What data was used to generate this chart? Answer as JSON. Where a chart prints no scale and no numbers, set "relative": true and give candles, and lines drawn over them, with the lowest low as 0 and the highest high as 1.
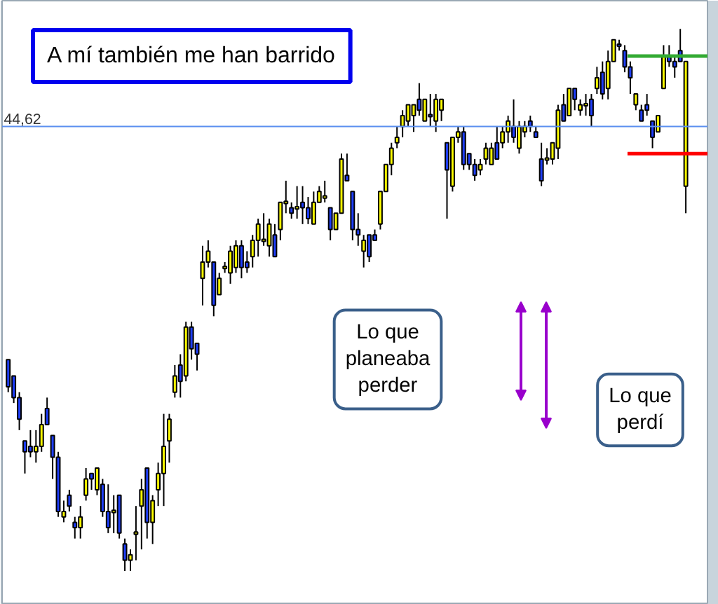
{
  "chart_data": {
    "type": "candlestick",
    "relative": true,
    "title": "A mí también me han barrido",
    "annotations": [
      "44,62",
      "Lo que planeaba perder",
      "Lo que perdí"
    ],
    "categories": [
      null,
      null,
      null,
      null,
      null,
      null,
      null,
      null,
      null,
      null,
      null,
      null,
      null,
      null,
      null,
      null,
      null,
      null,
      null,
      null,
      null,
      null,
      null,
      null,
      null,
      null,
      null,
      null,
      null,
      null,
      null,
      null,
      null,
      null,
      null,
      null,
      null,
      null,
      null,
      null,
      null,
      null,
      null,
      null,
      null,
      null,
      null,
      null,
      null,
      null,
      null,
      null,
      null,
      null,
      null,
      null,
      null,
      null,
      null,
      null,
      null,
      null,
      null,
      null,
      null,
      null,
      null,
      null,
      null,
      null,
      null,
      null,
      null,
      null,
      null,
      null,
      null,
      null,
      null,
      null,
      null,
      null,
      null,
      null,
      null,
      null,
      null,
      null,
      null,
      null,
      null,
      null,
      null,
      null,
      null,
      null,
      null,
      null,
      null,
      null,
      null,
      null,
      null,
      null,
      null,
      null,
      null,
      null,
      null,
      null,
      null,
      null,
      null,
      null,
      null,
      null,
      null,
      null,
      null,
      null,
      null,
      null,
      null
    ],
    "ohlc": [
      [
        0.39,
        0.39,
        0.33,
        0.34
      ],
      [
        0.36,
        0.36,
        0.31,
        0.32
      ],
      [
        0.32,
        0.33,
        0.26,
        0.28
      ],
      [
        0.24,
        0.24,
        0.18,
        0.22
      ],
      [
        0.23,
        0.26,
        0.21,
        0.22
      ],
      [
        0.22,
        0.26,
        0.2,
        0.23
      ],
      [
        0.23,
        0.29,
        0.22,
        0.27
      ],
      [
        0.3,
        0.32,
        0.27,
        0.27
      ],
      [
        0.25,
        0.25,
        0.17,
        0.21
      ],
      [
        0.21,
        0.22,
        0.1,
        0.11
      ],
      [
        0.1,
        0.13,
        0.09,
        0.11
      ],
      [
        0.14,
        0.15,
        0.11,
        0.12
      ],
      [
        0.09,
        0.1,
        0.06,
        0.08
      ],
      [
        0.08,
        0.12,
        0.06,
        0.1
      ],
      [
        0.14,
        0.19,
        0.13,
        0.17
      ],
      [
        0.18,
        0.18,
        0.15,
        0.17
      ],
      [
        0.15,
        0.19,
        0.14,
        0.19
      ],
      [
        0.16,
        0.17,
        0.1,
        0.11
      ],
      [
        0.11,
        0.16,
        0.07,
        0.08
      ],
      [
        0.11,
        0.14,
        0.07,
        0.11
      ],
      [
        0.14,
        0.14,
        0.06,
        0.07
      ],
      [
        0.05,
        0.06,
        0.0,
        0.02
      ],
      [
        0.02,
        0.04,
        0.0,
        0.03
      ],
      [
        0.07,
        0.12,
        0.02,
        0.07
      ],
      [
        0.12,
        0.17,
        0.04,
        0.15
      ],
      [
        0.19,
        0.19,
        0.06,
        0.09
      ],
      [
        0.09,
        0.14,
        0.05,
        0.13
      ],
      [
        0.15,
        0.2,
        0.12,
        0.18
      ],
      [
        0.18,
        0.29,
        0.12,
        0.23
      ],
      [
        0.24,
        0.29,
        0.2,
        0.28
      ],
      [
        0.33,
        0.38,
        0.32,
        0.36
      ],
      [
        0.38,
        0.4,
        0.32,
        0.35
      ],
      [
        0.36,
        0.46,
        0.35,
        0.45
      ],
      [
        0.45,
        0.46,
        0.39,
        0.41
      ],
      [
        0.42,
        0.42,
        0.37,
        0.4
      ],
      [
        0.54,
        0.6,
        0.49,
        0.57
      ],
      [
        0.57,
        0.61,
        0.56,
        0.59
      ],
      [
        0.57,
        0.57,
        0.47,
        0.49
      ],
      [
        0.51,
        0.55,
        0.51,
        0.54
      ],
      [
        0.56,
        0.57,
        0.55,
        0.56
      ],
      [
        0.55,
        0.6,
        0.53,
        0.59
      ],
      [
        0.56,
        0.61,
        0.55,
        0.6
      ],
      [
        0.6,
        0.61,
        0.54,
        0.56
      ],
      [
        0.57,
        0.59,
        0.55,
        0.56
      ],
      [
        0.58,
        0.62,
        0.56,
        0.61
      ],
      [
        0.61,
        0.65,
        0.58,
        0.64
      ],
      [
        0.61,
        0.66,
        0.6,
        0.61
      ],
      [
        0.6,
        0.65,
        0.58,
        0.64
      ],
      [
        0.62,
        0.64,
        0.58,
        0.58
      ],
      [
        0.63,
        0.68,
        0.61,
        0.68
      ],
      [
        0.68,
        0.72,
        0.66,
        0.68
      ],
      [
        0.67,
        0.68,
        0.65,
        0.66
      ],
      [
        0.67,
        0.71,
        0.65,
        0.67
      ],
      [
        0.68,
        0.71,
        0.64,
        0.67
      ],
      [
        0.67,
        0.69,
        0.64,
        0.65
      ],
      [
        0.64,
        0.7,
        0.64,
        0.68
      ],
      [
        0.68,
        0.71,
        0.68,
        0.7
      ],
      [
        0.69,
        0.72,
        0.68,
        0.69
      ],
      [
        0.67,
        0.67,
        0.61,
        0.63
      ],
      [
        0.63,
        0.66,
        0.63,
        0.66
      ],
      [
        0.66,
        0.77,
        0.66,
        0.76
      ],
      [
        0.73,
        0.77,
        0.72,
        0.72
      ],
      [
        0.7,
        0.7,
        0.61,
        0.63
      ],
      [
        0.63,
        0.66,
        0.6,
        0.62
      ],
      [
        0.59,
        0.62,
        0.56,
        0.61
      ],
      [
        0.62,
        0.62,
        0.57,
        0.58
      ],
      [
        0.62,
        0.63,
        0.61,
        0.61
      ],
      [
        0.64,
        0.7,
        0.63,
        0.7
      ],
      [
        0.7,
        0.75,
        0.7,
        0.75
      ],
      [
        0.75,
        0.79,
        0.73,
        0.78
      ],
      [
        0.79,
        0.82,
        0.78,
        0.8
      ],
      [
        0.82,
        0.85,
        0.8,
        0.84
      ],
      [
        0.83,
        0.86,
        0.82,
        0.86
      ],
      [
        0.84,
        0.86,
        0.81,
        0.86
      ],
      [
        0.87,
        0.9,
        0.84,
        0.85
      ],
      [
        0.83,
        0.87,
        0.83,
        0.87
      ],
      [
        0.84,
        0.88,
        0.82,
        0.84
      ],
      [
        0.83,
        0.88,
        0.81,
        0.87
      ],
      [
        0.85,
        0.87,
        0.83,
        0.87
      ],
      [
        0.79,
        0.79,
        0.65,
        0.74
      ],
      [
        0.71,
        0.8,
        0.7,
        0.8
      ],
      [
        0.8,
        0.82,
        0.79,
        0.81
      ],
      [
        0.81,
        0.82,
        0.74,
        0.75
      ],
      [
        0.77,
        0.77,
        0.74,
        0.75
      ],
      [
        0.75,
        0.76,
        0.72,
        0.73
      ],
      [
        0.74,
        0.76,
        0.73,
        0.75
      ],
      [
        0.76,
        0.79,
        0.75,
        0.78
      ],
      [
        0.75,
        0.79,
        0.75,
        0.78
      ],
      [
        0.79,
        0.82,
        0.76,
        0.76
      ],
      [
        0.79,
        0.82,
        0.78,
        0.81
      ],
      [
        0.81,
        0.84,
        0.79,
        0.83
      ],
      [
        0.82,
        0.87,
        0.79,
        0.8
      ],
      [
        0.78,
        0.83,
        0.77,
        0.82
      ],
      [
        0.81,
        0.83,
        0.8,
        0.82
      ],
      [
        0.83,
        0.84,
        0.81,
        0.82
      ],
      [
        0.81,
        0.82,
        0.8,
        0.8
      ],
      [
        0.76,
        0.79,
        0.71,
        0.72
      ],
      [
        0.76,
        0.78,
        0.75,
        0.76
      ],
      [
        0.76,
        0.79,
        0.75,
        0.79
      ],
      [
        0.78,
        0.86,
        0.76,
        0.85
      ],
      [
        0.86,
        0.88,
        0.83,
        0.83
      ],
      [
        0.84,
        0.89,
        0.84,
        0.89
      ],
      [
        0.89,
        0.89,
        0.85,
        0.87
      ],
      [
        0.85,
        0.87,
        0.84,
        0.86
      ],
      [
        0.86,
        0.88,
        0.84,
        0.86
      ],
      [
        0.87,
        0.88,
        0.82,
        0.84
      ],
      [
        0.89,
        0.93,
        0.88,
        0.91
      ],
      [
        0.92,
        0.94,
        0.87,
        0.88
      ],
      [
        0.89,
        0.96,
        0.87,
        0.94
      ],
      [
        0.94,
        0.98,
        0.94,
        0.98
      ],
      [
        0.97,
        0.98,
        0.96,
        0.97
      ],
      [
        0.96,
        0.97,
        0.92,
        0.93
      ],
      [
        0.93,
        0.94,
        0.88,
        0.91
      ],
      [
        0.86,
        0.88,
        0.85,
        0.88
      ],
      [
        0.85,
        0.86,
        0.83,
        0.83
      ],
      [
        0.86,
        0.88,
        0.84,
        0.85
      ],
      [
        0.83,
        0.83,
        0.78,
        0.8
      ],
      [
        0.81,
        0.84,
        0.81,
        0.84
      ],
      [
        0.89,
        0.97,
        0.89,
        0.95
      ],
      [
        0.95,
        0.97,
        0.93,
        0.94
      ],
      [
        0.94,
        0.95,
        0.91,
        0.93
      ],
      [
        0.96,
        1.0,
        0.94,
        0.94
      ],
      [
        0.71,
        0.94,
        0.66,
        0.94
      ]
    ],
    "colors": [
      "#1f3fff",
      "#1f3fff",
      "#1f3fff",
      "#1f3fff",
      "#1f3fff",
      "#ffff00",
      "#ffff00",
      "#1f3fff",
      "#1f3fff",
      "#1f3fff",
      "#ffff00",
      "#1f3fff",
      "#1f3fff",
      "#ffff00",
      "#ffff00",
      "#1f3fff",
      "#ffff00",
      "#1f3fff",
      "#1f3fff",
      "#ffff00",
      "#1f3fff",
      "#1f3fff",
      "#ffff00",
      "#ffff00",
      "#ffff00",
      "#1f3fff",
      "#ffff00",
      "#ffff00",
      "#ffff00",
      "#ffff00",
      "#ffff00",
      "#1f3fff",
      "#ffff00",
      "#1f3fff",
      "#1f3fff",
      "#ffff00",
      "#ffff00",
      "#1f3fff",
      "#ffff00",
      "#ffff00",
      "#ffff00",
      "#ffff00",
      "#1f3fff",
      "#1f3fff",
      "#ffff00",
      "#ffff00",
      "#ffff00",
      "#ffff00",
      "#1f3fff",
      "#ffff00",
      "#ffff00",
      "#1f3fff",
      "#ffff00",
      "#1f3fff",
      "#1f3fff",
      "#ffff00",
      "#ffff00",
      "#ffff00",
      "#1f3fff",
      "#ffff00",
      "#ffff00",
      "#1f3fff",
      "#1f3fff",
      "#1f3fff",
      "#ffff00",
      "#1f3fff",
      "#1f3fff",
      "#ffff00",
      "#ffff00",
      "#ffff00",
      "#ffff00",
      "#ffff00",
      "#ffff00",
      "#ffff00",
      "#1f3fff",
      "#ffff00",
      "#1f3fff",
      "#ffff00",
      "#ffff00",
      "#1f3fff",
      "#ffff00",
      "#ffff00",
      "#1f3fff",
      "#1f3fff",
      "#1f3fff",
      "#ffff00",
      "#ffff00",
      "#ffff00",
      "#1f3fff",
      "#ffff00",
      "#ffff00",
      "#1f3fff",
      "#ffff00",
      "#ffff00",
      "#1f3fff",
      "#1f3fff",
      "#1f3fff",
      "#ffff00",
      "#ffff00",
      "#ffff00",
      "#1f3fff",
      "#ffff00",
      "#1f3fff",
      "#ffff00",
      "#ffff00",
      "#1f3fff",
      "#ffff00",
      "#1f3fff",
      "#ffff00",
      "#ffff00",
      "#1f3fff",
      "#1f3fff",
      "#1f3fff",
      "#ffff00",
      "#1f3fff",
      "#1f3fff",
      "#1f3fff",
      "#ffff00",
      "#ffff00",
      "#1f3fff",
      "#1f3fff",
      "#1f3fff",
      "#ffff00"
    ],
    "ref_lines": [
      {
        "axis": "y",
        "value": 0.82,
        "color": "#5b8ff0",
        "line_style": "solid"
      },
      {
        "axis": "y",
        "value": 0.77,
        "color": "#ff0000"
      },
      {
        "axis": "y",
        "value": 0.95,
        "color": "#33aa33"
      }
    ]
  }
}
